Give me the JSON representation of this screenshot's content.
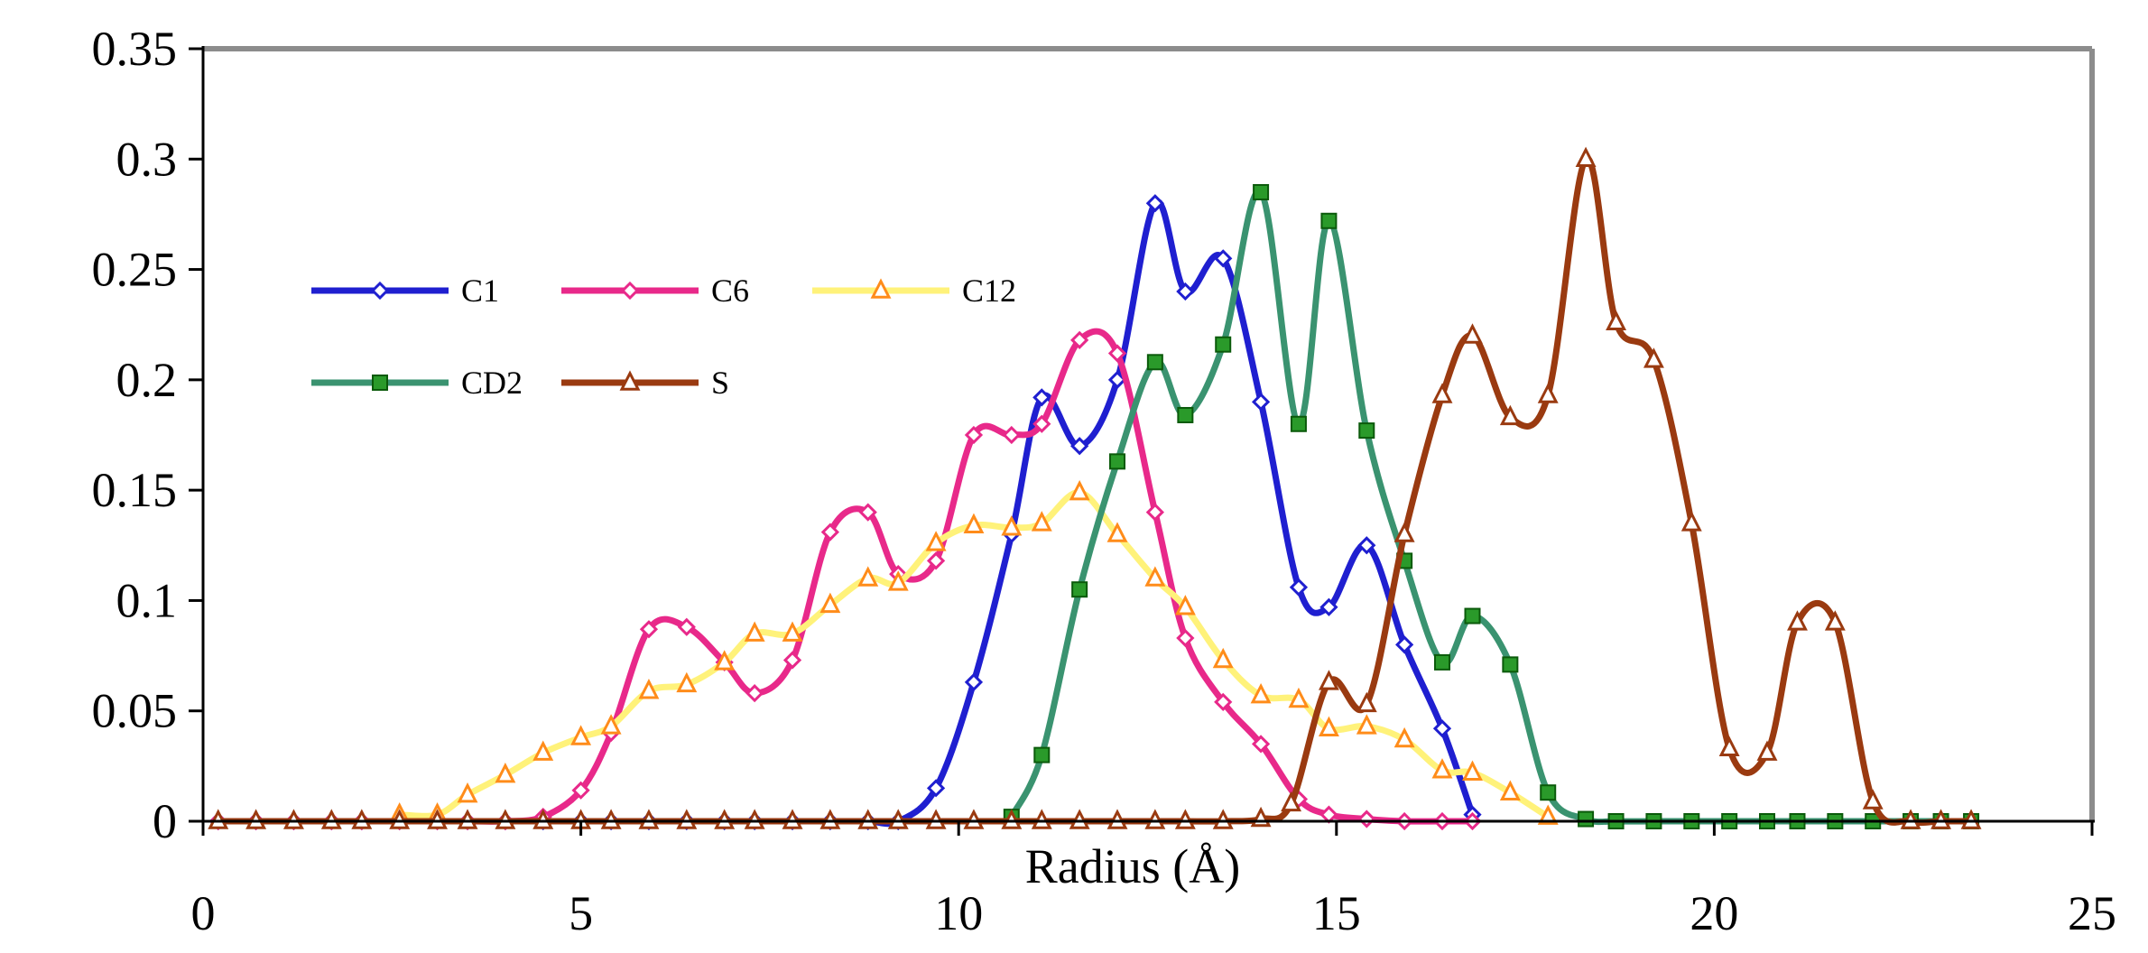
{
  "chart_data": {
    "type": "line",
    "title": "",
    "xlabel": "Radius (Å)",
    "ylabel": "",
    "xlim": [
      0,
      25
    ],
    "ylim": [
      0,
      0.35
    ],
    "xticks": [
      "0",
      "5",
      "10",
      "15",
      "20",
      "25"
    ],
    "yticks": [
      "0",
      "0.05",
      "0.1",
      "0.15",
      "0.2",
      "0.25",
      "0.3",
      "0.35"
    ],
    "legend_position": "upper-left inside plot, two rows",
    "series": [
      {
        "name": "C1",
        "color": "#1f1fd0",
        "marker": "diamond",
        "x": [
          0.2,
          0.7,
          1.2,
          1.7,
          2.1,
          2.6,
          3.1,
          3.5,
          4.0,
          4.5,
          5.0,
          5.4,
          5.9,
          6.4,
          6.9,
          7.3,
          7.8,
          8.3,
          8.8,
          9.2,
          9.7,
          10.2,
          10.7,
          11.1,
          11.6,
          12.1,
          12.6,
          13.0,
          13.5,
          14.0,
          14.5,
          14.9,
          15.4,
          15.9,
          16.4,
          16.8
        ],
        "y": [
          0,
          0,
          0,
          0,
          0,
          0,
          0,
          0,
          0,
          0,
          0,
          0,
          0,
          0,
          0,
          0,
          0,
          0,
          0,
          0,
          0.015,
          0.063,
          0.13,
          0.192,
          0.17,
          0.2,
          0.28,
          0.24,
          0.255,
          0.19,
          0.106,
          0.097,
          0.125,
          0.08,
          0.042,
          0.003
        ]
      },
      {
        "name": "C6",
        "color": "#e8298a",
        "marker": "diamond",
        "x": [
          0.2,
          0.7,
          1.2,
          1.7,
          2.1,
          2.6,
          3.1,
          3.5,
          4.0,
          4.5,
          5.0,
          5.4,
          5.9,
          6.4,
          6.9,
          7.3,
          7.8,
          8.3,
          8.8,
          9.2,
          9.7,
          10.2,
          10.7,
          11.1,
          11.6,
          12.1,
          12.6,
          13.0,
          13.5,
          14.0,
          14.5,
          14.9,
          15.4,
          15.9,
          16.4,
          16.8
        ],
        "y": [
          0,
          0,
          0,
          0,
          0,
          0,
          0,
          0,
          0,
          0.002,
          0.014,
          0.04,
          0.087,
          0.088,
          0.072,
          0.058,
          0.073,
          0.131,
          0.14,
          0.112,
          0.118,
          0.175,
          0.175,
          0.18,
          0.218,
          0.212,
          0.14,
          0.083,
          0.054,
          0.035,
          0.01,
          0.003,
          0.001,
          0,
          0,
          0
        ]
      },
      {
        "name": "C12",
        "color": "#fff27a",
        "marker": "triangle",
        "x": [
          2.6,
          3.1,
          3.5,
          4.0,
          4.5,
          5.0,
          5.4,
          5.9,
          6.4,
          6.9,
          7.3,
          7.8,
          8.3,
          8.8,
          9.2,
          9.7,
          10.2,
          10.7,
          11.1,
          11.6,
          12.1,
          12.6,
          13.0,
          13.5,
          14.0,
          14.5,
          14.9,
          15.4,
          15.9,
          16.4,
          16.8,
          17.3,
          17.8
        ],
        "y": [
          0.003,
          0.003,
          0.012,
          0.021,
          0.031,
          0.038,
          0.043,
          0.059,
          0.062,
          0.072,
          0.085,
          0.085,
          0.098,
          0.11,
          0.108,
          0.126,
          0.134,
          0.133,
          0.135,
          0.149,
          0.13,
          0.11,
          0.097,
          0.073,
          0.057,
          0.055,
          0.042,
          0.043,
          0.037,
          0.023,
          0.022,
          0.013,
          0.002
        ]
      },
      {
        "name": "CD2",
        "color": "#3a9370",
        "marker": "square",
        "x": [
          10.7,
          11.1,
          11.6,
          12.1,
          12.6,
          13.0,
          13.5,
          14.0,
          14.5,
          14.9,
          15.4,
          15.9,
          16.4,
          16.8,
          17.3,
          17.8,
          18.3,
          18.7,
          19.2,
          19.7,
          20.2,
          20.7,
          21.1,
          21.6,
          22.1,
          22.6,
          23.0,
          23.4
        ],
        "y": [
          0.002,
          0.03,
          0.105,
          0.163,
          0.208,
          0.184,
          0.216,
          0.285,
          0.18,
          0.272,
          0.177,
          0.118,
          0.072,
          0.093,
          0.071,
          0.013,
          0.001,
          0,
          0,
          0,
          0,
          0,
          0,
          0,
          0,
          0,
          0,
          0
        ]
      },
      {
        "name": "S",
        "color": "#9a3a10",
        "marker": "triangle",
        "x": [
          0.2,
          0.7,
          1.2,
          1.7,
          2.1,
          2.6,
          3.1,
          3.5,
          4.0,
          4.5,
          5.0,
          5.4,
          5.9,
          6.4,
          6.9,
          7.3,
          7.8,
          8.3,
          8.8,
          9.2,
          9.7,
          10.2,
          10.7,
          11.1,
          11.6,
          12.1,
          12.6,
          13.0,
          13.5,
          14.0,
          14.4,
          14.9,
          15.4,
          15.9,
          16.4,
          16.8,
          17.3,
          17.8,
          18.3,
          18.7,
          19.2,
          19.7,
          20.2,
          20.7,
          21.1,
          21.6,
          22.1,
          22.6,
          23.0,
          23.4
        ],
        "y": [
          0,
          0,
          0,
          0,
          0,
          0,
          0,
          0,
          0,
          0,
          0,
          0,
          0,
          0,
          0,
          0,
          0,
          0,
          0,
          0,
          0,
          0,
          0,
          0,
          0,
          0,
          0,
          0,
          0,
          0.001,
          0.008,
          0.063,
          0.053,
          0.13,
          0.193,
          0.22,
          0.183,
          0.193,
          0.3,
          0.226,
          0.209,
          0.135,
          0.033,
          0.031,
          0.09,
          0.09,
          0.009,
          0,
          0,
          0
        ]
      }
    ]
  }
}
